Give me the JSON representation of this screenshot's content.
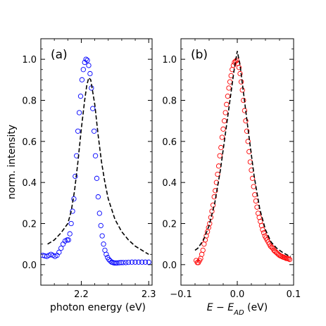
{
  "chart_data": [
    {
      "type": "scatter",
      "panel_label": "(a)",
      "xlabel": "photon energy (eV)",
      "ylabel": "norm. intensity",
      "xlim": [
        2.14,
        2.305
      ],
      "ylim": [
        -0.1,
        1.1
      ],
      "xticks": [
        2.2,
        2.3
      ],
      "xtick_labels": [
        "2.2",
        "2.3"
      ],
      "yticks": [
        0.0,
        0.2,
        0.4,
        0.6,
        0.8,
        1.0
      ],
      "ytick_labels": [
        "0.0",
        "0.2",
        "0.4",
        "0.6",
        "0.8",
        "1.0"
      ],
      "series": [
        {
          "style": "markers",
          "color": "#0000ff",
          "x": [
            2.143,
            2.146,
            2.149,
            2.152,
            2.155,
            2.158,
            2.161,
            2.164,
            2.167,
            2.17,
            2.173,
            2.176,
            2.179,
            2.181,
            2.183,
            2.185,
            2.187,
            2.189,
            2.191,
            2.193,
            2.195,
            2.197,
            2.199,
            2.201,
            2.203,
            2.205,
            2.207,
            2.209,
            2.211,
            2.213,
            2.215,
            2.217,
            2.219,
            2.221,
            2.223,
            2.225,
            2.227,
            2.229,
            2.231,
            2.233,
            2.235,
            2.237,
            2.239,
            2.241,
            2.243,
            2.245,
            2.247,
            2.249,
            2.251,
            2.253,
            2.256,
            2.259,
            2.262,
            2.266,
            2.27,
            2.275,
            2.28,
            2.285,
            2.29,
            2.295,
            2.3
          ],
          "y": [
            0.045,
            0.042,
            0.04,
            0.045,
            0.05,
            0.045,
            0.04,
            0.045,
            0.06,
            0.08,
            0.1,
            0.115,
            0.12,
            0.12,
            0.15,
            0.2,
            0.26,
            0.32,
            0.43,
            0.53,
            0.65,
            0.74,
            0.82,
            0.9,
            0.95,
            0.985,
            1.0,
            0.995,
            0.97,
            0.93,
            0.86,
            0.76,
            0.65,
            0.53,
            0.42,
            0.33,
            0.25,
            0.19,
            0.14,
            0.1,
            0.07,
            0.05,
            0.035,
            0.025,
            0.018,
            0.012,
            0.01,
            0.008,
            0.008,
            0.008,
            0.009,
            0.01,
            0.01,
            0.01,
            0.011,
            0.012,
            0.012,
            0.012,
            0.012,
            0.012,
            0.012
          ]
        },
        {
          "style": "dashed-line",
          "color": "#000000",
          "x": [
            2.15,
            2.16,
            2.17,
            2.18,
            2.185,
            2.19,
            2.195,
            2.2,
            2.205,
            2.208,
            2.211,
            2.214,
            2.22,
            2.225,
            2.23,
            2.235,
            2.24,
            2.25,
            2.26,
            2.27,
            2.28,
            2.29,
            2.3
          ],
          "y": [
            0.1,
            0.12,
            0.155,
            0.2,
            0.26,
            0.36,
            0.5,
            0.66,
            0.8,
            0.87,
            0.91,
            0.9,
            0.78,
            0.63,
            0.5,
            0.4,
            0.32,
            0.22,
            0.16,
            0.12,
            0.09,
            0.07,
            0.05
          ]
        }
      ]
    },
    {
      "type": "scatter",
      "panel_label": "(b)",
      "xlabel": "E − E_AD (eV)",
      "ylabel": "",
      "xlim": [
        -0.1,
        0.1
      ],
      "ylim": [
        -0.1,
        1.1
      ],
      "xticks": [
        -0.1,
        0.0,
        0.1
      ],
      "xtick_labels": [
        "−0.1",
        "0.0",
        "0.1"
      ],
      "yticks": [
        0.0,
        0.2,
        0.4,
        0.6,
        0.8,
        1.0
      ],
      "ytick_labels": [
        "0.0",
        "0.2",
        "0.4",
        "0.6",
        "0.8",
        "1.0"
      ],
      "series": [
        {
          "style": "markers",
          "color": "#ff0000",
          "x": [
            -0.073,
            -0.071,
            -0.069,
            -0.067,
            -0.065,
            -0.063,
            -0.061,
            -0.059,
            -0.057,
            -0.055,
            -0.053,
            -0.051,
            -0.049,
            -0.047,
            -0.045,
            -0.043,
            -0.041,
            -0.039,
            -0.037,
            -0.035,
            -0.033,
            -0.031,
            -0.029,
            -0.027,
            -0.025,
            -0.023,
            -0.021,
            -0.019,
            -0.017,
            -0.015,
            -0.013,
            -0.011,
            -0.009,
            -0.007,
            -0.005,
            -0.003,
            -0.001,
            0.001,
            0.003,
            0.005,
            0.007,
            0.009,
            0.011,
            0.013,
            0.015,
            0.017,
            0.019,
            0.021,
            0.023,
            0.025,
            0.027,
            0.029,
            0.031,
            0.033,
            0.035,
            0.037,
            0.039,
            0.041,
            0.043,
            0.045,
            0.047,
            0.049,
            0.051,
            0.053,
            0.055,
            0.057,
            0.059,
            0.061,
            0.063,
            0.065,
            0.067,
            0.069,
            0.071,
            0.073,
            0.075,
            0.077,
            0.079,
            0.081,
            0.083,
            0.085,
            0.087,
            0.089,
            0.091,
            0.093
          ],
          "y": [
            0.02,
            0.01,
            0.01,
            0.02,
            0.03,
            0.05,
            0.07,
            0.1,
            0.12,
            0.14,
            0.16,
            0.18,
            0.2,
            0.23,
            0.26,
            0.29,
            0.33,
            0.36,
            0.4,
            0.44,
            0.48,
            0.53,
            0.57,
            0.62,
            0.66,
            0.7,
            0.74,
            0.78,
            0.82,
            0.86,
            0.89,
            0.92,
            0.95,
            0.97,
            0.985,
            0.99,
            0.995,
            0.98,
            0.96,
            0.93,
            0.89,
            0.85,
            0.8,
            0.75,
            0.7,
            0.65,
            0.6,
            0.55,
            0.5,
            0.46,
            0.42,
            0.38,
            0.34,
            0.31,
            0.28,
            0.25,
            0.23,
            0.21,
            0.19,
            0.17,
            0.155,
            0.14,
            0.13,
            0.12,
            0.11,
            0.1,
            0.09,
            0.085,
            0.08,
            0.07,
            0.065,
            0.06,
            0.055,
            0.05,
            0.045,
            0.042,
            0.04,
            0.037,
            0.035,
            0.033,
            0.03,
            0.03,
            0.028,
            0.025
          ]
        },
        {
          "style": "dashed-line",
          "color": "#000000",
          "x": [
            -0.075,
            -0.07,
            -0.06,
            -0.05,
            -0.04,
            -0.03,
            -0.02,
            -0.01,
            -0.005,
            0.0,
            0.005,
            0.01,
            0.02,
            0.03,
            0.04,
            0.05,
            0.06,
            0.07,
            0.08,
            0.09,
            0.095
          ],
          "y": [
            0.07,
            0.08,
            0.12,
            0.19,
            0.3,
            0.46,
            0.66,
            0.86,
            0.96,
            1.04,
            0.97,
            0.86,
            0.64,
            0.43,
            0.27,
            0.17,
            0.11,
            0.08,
            0.06,
            0.045,
            0.04
          ]
        }
      ]
    }
  ]
}
